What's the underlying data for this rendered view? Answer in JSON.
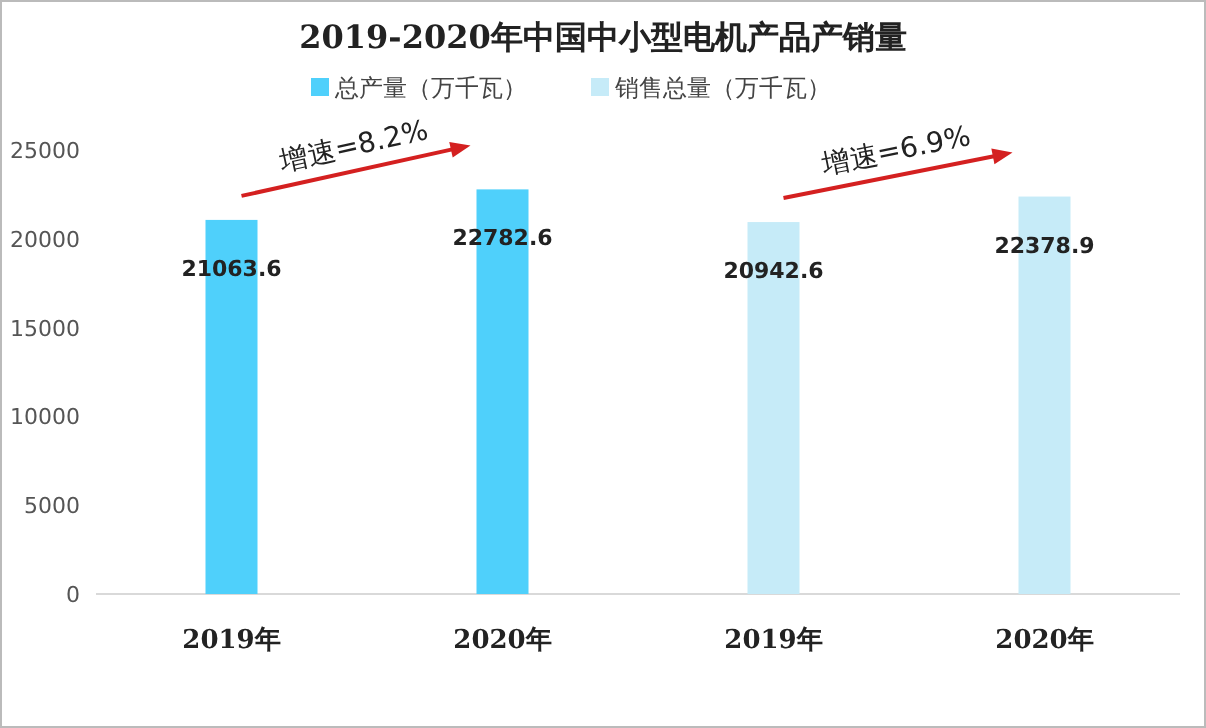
{
  "chart_data": {
    "type": "bar",
    "title": "2019-2020年中国中小型电机产品产销量",
    "categories": [
      "2019年",
      "2020年",
      "2019年",
      "2020年"
    ],
    "series": [
      {
        "name": "总产量（万千瓦）",
        "color": "#4fd0fb",
        "values": [
          21063.6,
          22782.6,
          null,
          null
        ]
      },
      {
        "name": "销售总量（万千瓦）",
        "color": "#c6ebf8",
        "values": [
          null,
          null,
          20942.6,
          22378.9
        ]
      }
    ],
    "ylim": [
      0,
      25000
    ],
    "yticks": [
      0,
      5000,
      10000,
      15000,
      20000,
      25000
    ],
    "data_labels": true,
    "grid": false,
    "legend": "top",
    "annotations": [
      "增速=8.2%",
      "增速=6.9%"
    ]
  }
}
